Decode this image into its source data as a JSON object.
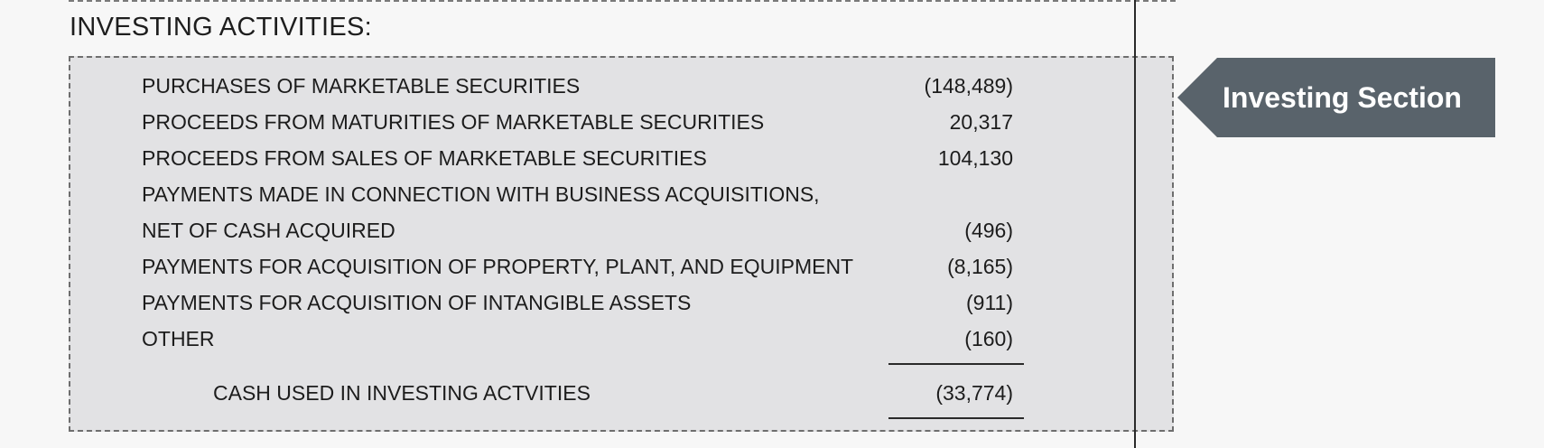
{
  "heading": "INVESTING ACTIVITIES:",
  "callout": {
    "label": "Investing Section",
    "color": "#59636b"
  },
  "line_items": [
    {
      "label": "PURCHASES OF MARKETABLE SECURITIES",
      "value": "(148,489)"
    },
    {
      "label": "PROCEEDS FROM MATURITIES OF MARKETABLE SECURITIES",
      "value": "20,317"
    },
    {
      "label": "PROCEEDS FROM SALES OF MARKETABLE SECURITIES",
      "value": "104,130"
    },
    {
      "label": "PAYMENTS MADE IN CONNECTION WITH BUSINESS ACQUISITIONS,",
      "value": ""
    },
    {
      "label": "NET OF CASH ACQUIRED",
      "value": "(496)"
    },
    {
      "label": "PAYMENTS FOR ACQUISITION OF PROPERTY, PLANT, AND EQUIPMENT",
      "value": "(8,165)"
    },
    {
      "label": "PAYMENTS FOR ACQUISITION OF INTANGIBLE ASSETS",
      "value": "(911)"
    },
    {
      "label": "OTHER",
      "value": "(160)"
    }
  ],
  "total": {
    "label": "CASH USED IN INVESTING ACTVITIES",
    "value": "(33,774)"
  }
}
